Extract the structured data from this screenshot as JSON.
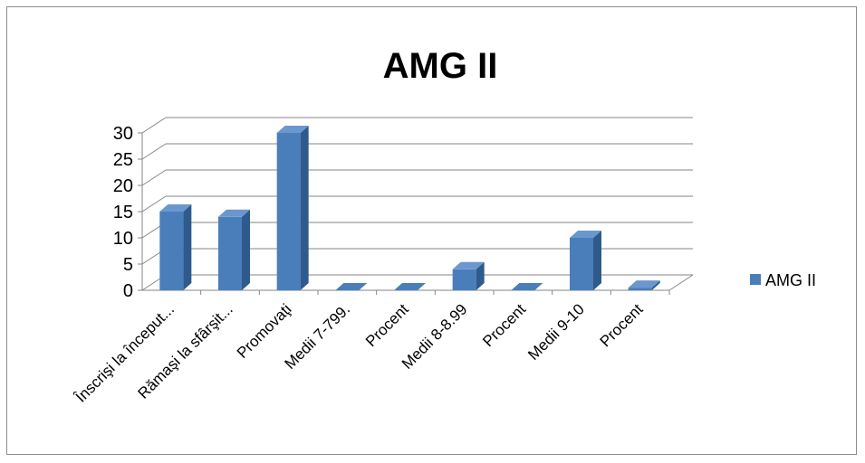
{
  "chart_data": {
    "type": "bar",
    "title": "AMG II",
    "categories": [
      "Înscrişi la început...",
      "Rămaşi la sfârşit...",
      "Promovaţi",
      "Medii 7-799.",
      "Procent",
      "Medii 8-8.99",
      "Procent",
      "Medii 9-10",
      "Procent"
    ],
    "series": [
      {
        "name": "AMG II",
        "values": [
          15,
          14,
          30,
          0,
          0,
          4,
          0,
          10,
          0.5
        ]
      }
    ],
    "yticks": [
      "0",
      "5",
      "10",
      "15",
      "20",
      "25",
      "30"
    ],
    "ylim": [
      0,
      30
    ],
    "grid": true,
    "legend": "right",
    "colors": {
      "bar_front": "#4a7ebb",
      "bar_side": "#2e5a8c",
      "bar_top": "#6b97cf",
      "grid": "#868686"
    }
  }
}
